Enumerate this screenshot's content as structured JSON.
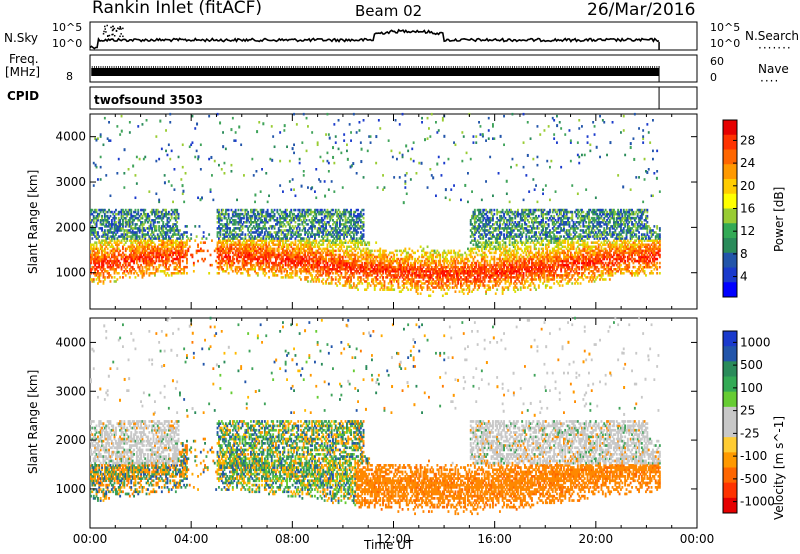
{
  "header": {
    "station": "Rankin Inlet (fitACF)",
    "beam": "Beam 02",
    "date": "26/Mar/2016"
  },
  "top_panels": {
    "nsky_label": "N.Sky",
    "nsky_ticks": [
      "10^5",
      "10^0"
    ],
    "nsearch_label": "N.Search",
    "nsearch_ticks": [
      "10^5",
      "10^0"
    ],
    "freq_label": "Freq.",
    "freq_unit": "[MHz]",
    "freq_tick": "8",
    "nave_label": "Nave",
    "nave_ticks": [
      "60",
      "0"
    ],
    "cpid_label": "CPID",
    "cpid_value": "twofsound 3503"
  },
  "chart_data": [
    {
      "type": "heatmap",
      "name": "power",
      "ylabel": "Slant Range [km]",
      "yticks": [
        1000,
        2000,
        3000,
        4000
      ],
      "ylim": [
        200,
        4500
      ],
      "xlabel": "Time UT",
      "xticks": [
        "00:00",
        "04:00",
        "08:00",
        "12:00",
        "16:00",
        "20:00",
        "00:00"
      ],
      "xlim_hours": [
        0,
        24
      ],
      "data_end_hours": 22.5,
      "colorbar": {
        "label": "Power [dB]",
        "ticks": [
          "28",
          "24",
          "20",
          "16",
          "12",
          "8",
          "4"
        ],
        "colors": [
          "#e60000",
          "#ff3300",
          "#ff6600",
          "#ff9900",
          "#ffcc00",
          "#ffff00",
          "#99cc33",
          "#33aa55",
          "#2a8b5a",
          "#2255aa",
          "#1a3acc",
          "#0000ff"
        ]
      }
    },
    {
      "type": "heatmap",
      "name": "velocity",
      "ylabel": "Slant Range [km]",
      "yticks": [
        1000,
        2000,
        3000,
        4000
      ],
      "ylim": [
        200,
        4500
      ],
      "xlabel": "Time UT",
      "xticks": [
        "00:00",
        "04:00",
        "08:00",
        "12:00",
        "16:00",
        "20:00",
        "00:00"
      ],
      "xlim_hours": [
        0,
        24
      ],
      "data_end_hours": 22.5,
      "colorbar": {
        "label": "Velocity [m s^-1]",
        "ticks": [
          "1000",
          "500",
          "100",
          "25",
          "-25",
          "-100",
          "-500",
          "-1000"
        ],
        "colors": [
          "#1a3acc",
          "#2255aa",
          "#2a8b5a",
          "#33aa55",
          "#66cc33",
          "#c8c8c8",
          "#c8c8c8",
          "#ffcc33",
          "#ff9900",
          "#ff6600",
          "#ff3300",
          "#e60000"
        ]
      }
    }
  ]
}
